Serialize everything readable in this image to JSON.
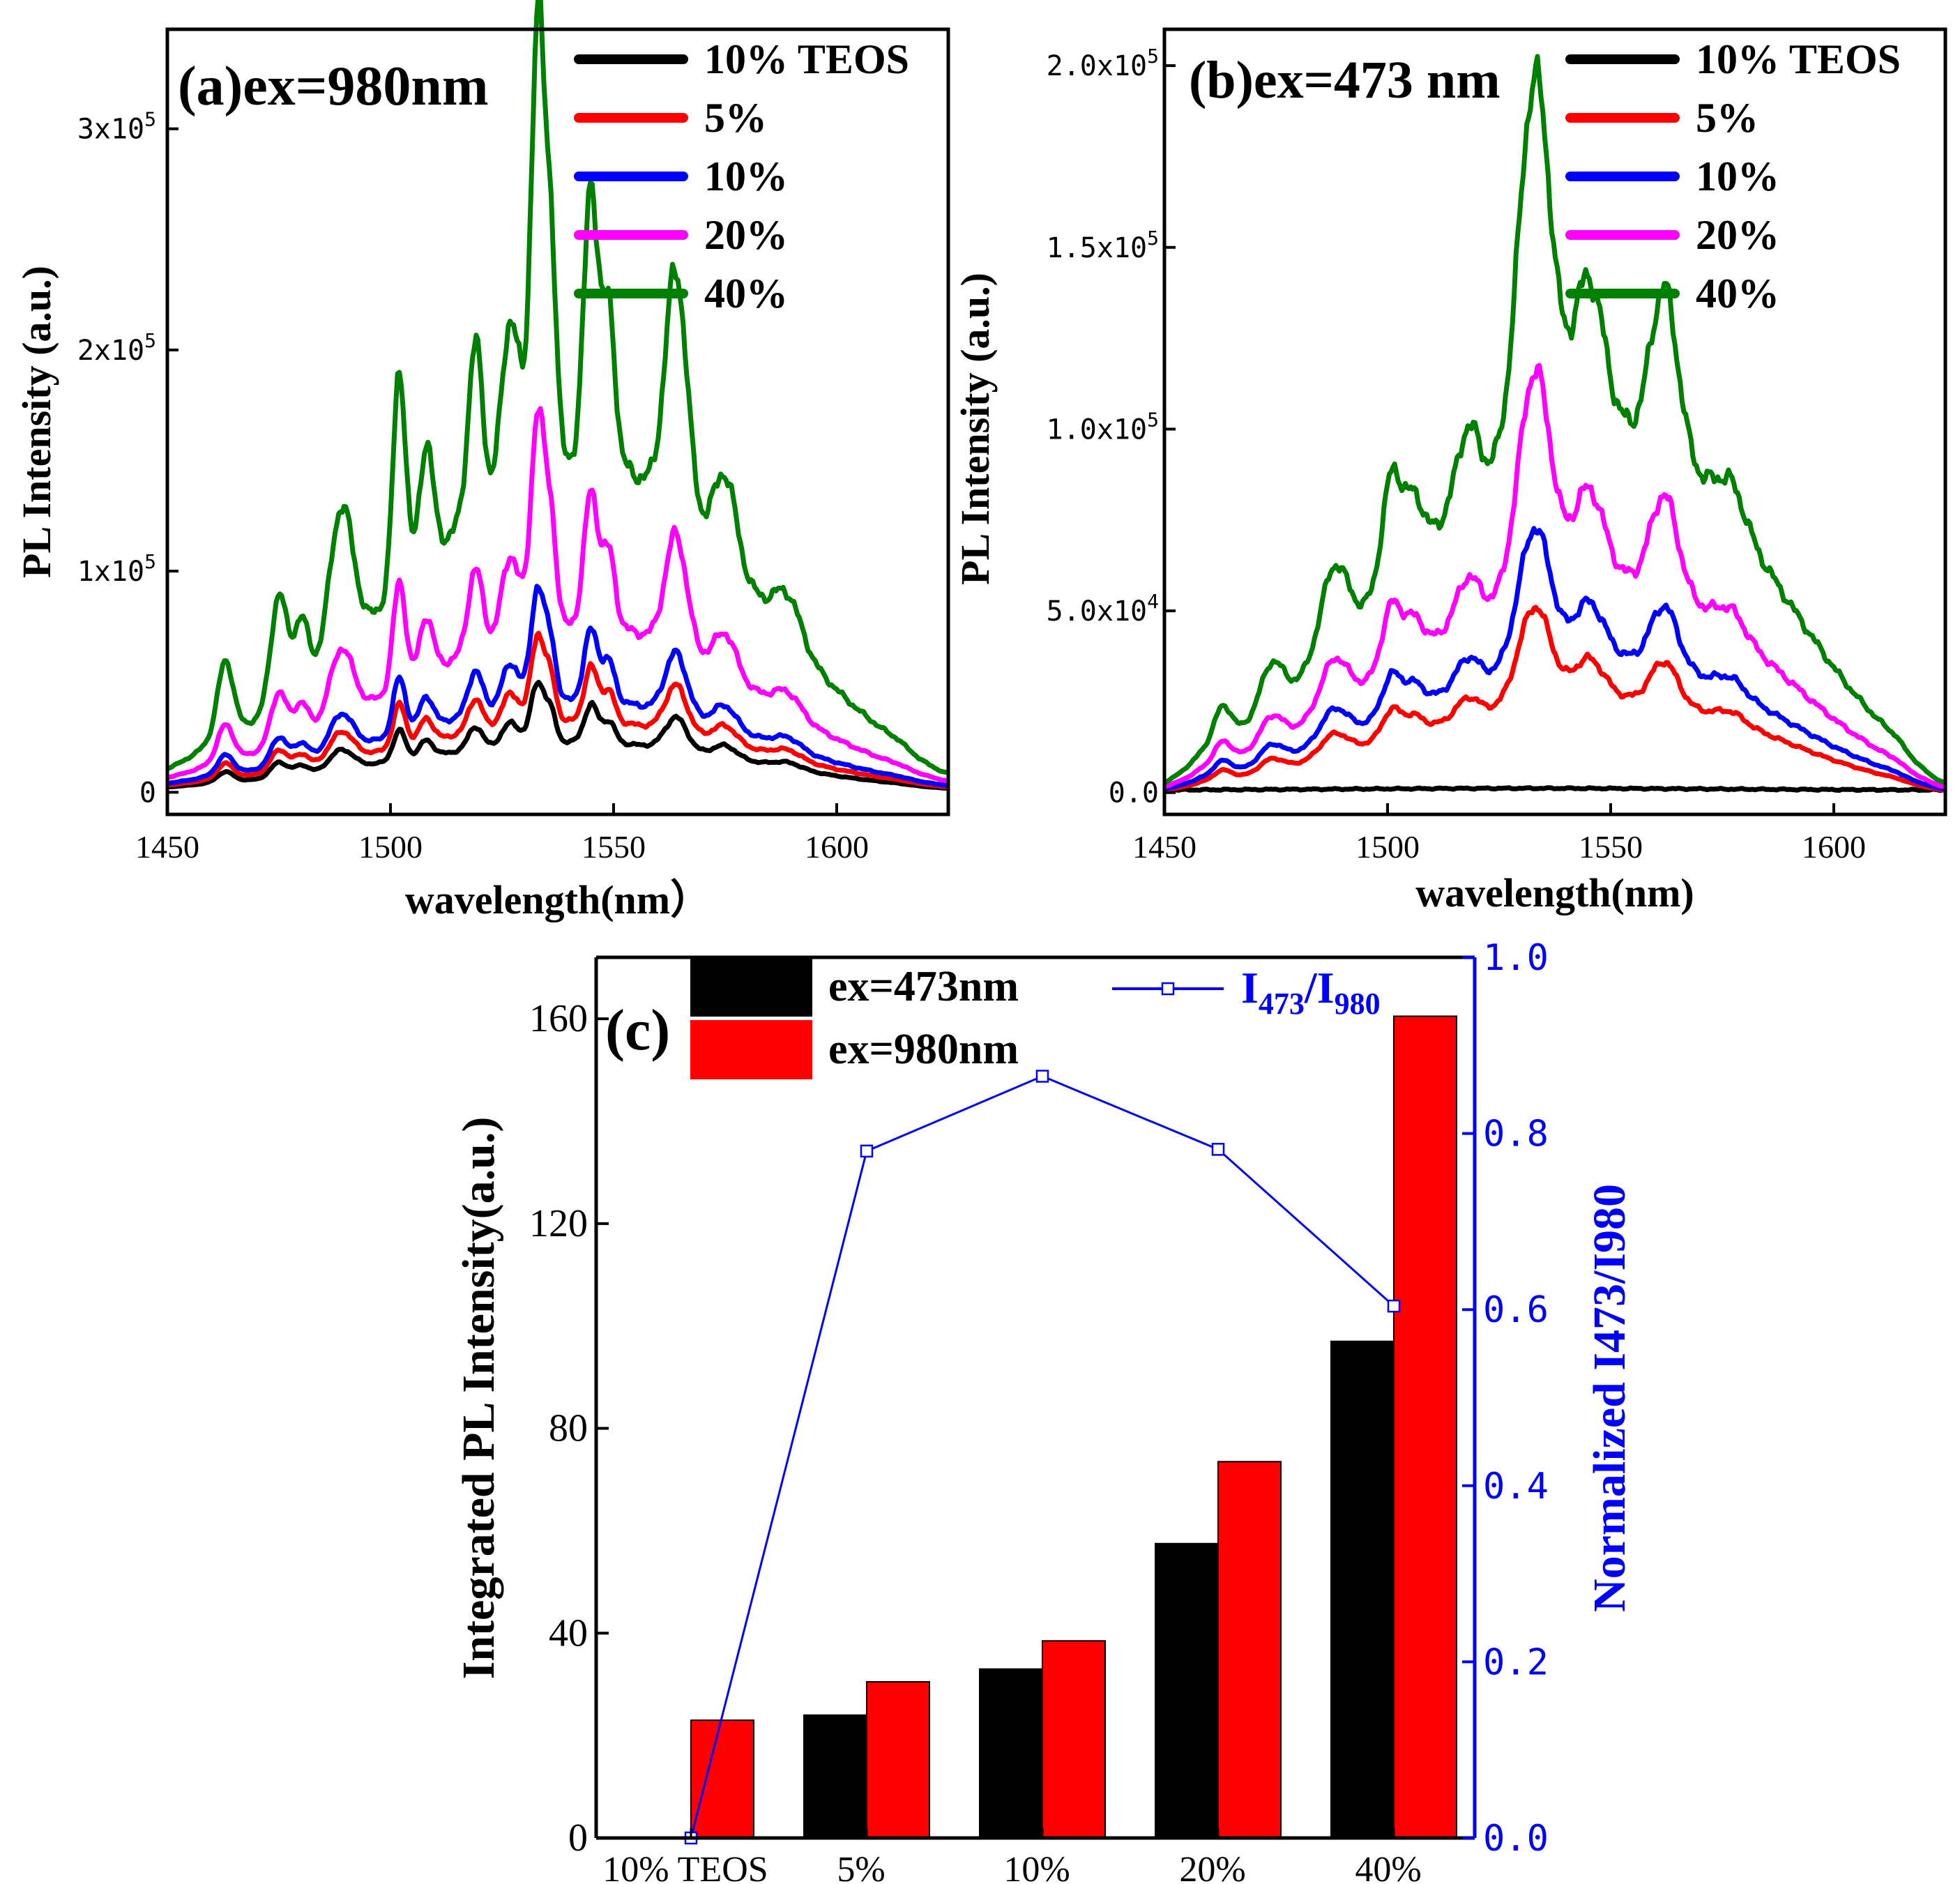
{
  "chart_data": [
    {
      "type": "line",
      "panel": "a",
      "title": "(a)ex=980nm",
      "xlabel": "wavelength(nm）",
      "ylabel": "PL Intensity (a.u.)",
      "xlim": [
        1450,
        1625
      ],
      "ylim": [
        -10000,
        345000
      ],
      "xticks": [
        1450,
        1500,
        1550,
        1600
      ],
      "xtick_labels": [
        "1450",
        "1500",
        "1550",
        "1600"
      ],
      "yticks": [
        0,
        100000,
        200000,
        300000
      ],
      "ytick_labels": [
        {
          "text": "0",
          "mantissa": "",
          "exp": ""
        },
        {
          "text": "1x10",
          "mantissa": "1x10",
          "exp": "5"
        },
        {
          "text": "2x10",
          "mantissa": "2x10",
          "exp": "5"
        },
        {
          "text": "3x10",
          "mantissa": "3x10",
          "exp": "5"
        }
      ],
      "legend": {
        "position": "top-right"
      },
      "series": [
        {
          "name": "10% TEOS",
          "color": "#000000",
          "scale": 0.135,
          "base": 0.015
        },
        {
          "name": "5%",
          "color": "#ff0000",
          "scale": 0.195,
          "base": 0.02
        },
        {
          "name": "10%",
          "color": "#0000ff",
          "scale": 0.255,
          "base": 0.025
        },
        {
          "name": "20%",
          "color": "#ff00ff",
          "scale": 0.48,
          "base": 0.04
        },
        {
          "name": "40%",
          "color": "#008000",
          "scale": 1.0,
          "base": 0.06
        }
      ],
      "profile": {
        "peak_value": 336000,
        "continuum": [
          {
            "c": 1530,
            "a": 0.26,
            "w": 34
          },
          {
            "c": 1565,
            "a": 0.14,
            "w": 28
          }
        ],
        "peaks": [
          {
            "c": 1463,
            "a": 0.09,
            "w": 1.8
          },
          {
            "c": 1475,
            "a": 0.13,
            "w": 1.8
          },
          {
            "c": 1480,
            "a": 0.08,
            "w": 1.6
          },
          {
            "c": 1489,
            "a": 0.17,
            "w": 2.6
          },
          {
            "c": 1502,
            "a": 0.26,
            "w": 1.4
          },
          {
            "c": 1508,
            "a": 0.14,
            "w": 1.5
          },
          {
            "c": 1519,
            "a": 0.2,
            "w": 1.6
          },
          {
            "c": 1527,
            "a": 0.2,
            "w": 2.0
          },
          {
            "c": 1533,
            "a": 0.54,
            "w": 1.5
          },
          {
            "c": 1536,
            "a": 0.25,
            "w": 1.2
          },
          {
            "c": 1545,
            "a": 0.33,
            "w": 1.6
          },
          {
            "c": 1549,
            "a": 0.18,
            "w": 1.4
          },
          {
            "c": 1564,
            "a": 0.28,
            "w": 2.4
          },
          {
            "c": 1575,
            "a": 0.1,
            "w": 2.5
          },
          {
            "c": 1589,
            "a": 0.05,
            "w": 3.0
          }
        ]
      }
    },
    {
      "type": "line",
      "panel": "b",
      "title": "(b)ex=473 nm",
      "xlabel": "wavelength(nm)",
      "ylabel": "PL Intensity (a.u.)",
      "xlim": [
        1450,
        1625
      ],
      "ylim": [
        -6000,
        210000
      ],
      "xticks": [
        1450,
        1500,
        1550,
        1600
      ],
      "xtick_labels": [
        "1450",
        "1500",
        "1550",
        "1600"
      ],
      "yticks": [
        0,
        50000,
        100000,
        150000,
        200000
      ],
      "ytick_labels": [
        {
          "text": "0.0",
          "mantissa": "",
          "exp": ""
        },
        {
          "text": "5.0x10",
          "mantissa": "5.0x10",
          "exp": "4"
        },
        {
          "text": "1.0x10",
          "mantissa": "1.0x10",
          "exp": "5"
        },
        {
          "text": "1.5x10",
          "mantissa": "1.5x10",
          "exp": "5"
        },
        {
          "text": "2.0x10",
          "mantissa": "2.0x10",
          "exp": "5"
        }
      ],
      "legend": {
        "position": "top-right"
      },
      "series": [
        {
          "name": "10% TEOS",
          "color": "#000000",
          "scale": 0.01,
          "base": 0.0
        },
        {
          "name": "5%",
          "color": "#ff0000",
          "scale": 0.26,
          "base": 0.0
        },
        {
          "name": "10%",
          "color": "#0000ff",
          "scale": 0.37,
          "base": 0.0
        },
        {
          "name": "20%",
          "color": "#ff00ff",
          "scale": 0.59,
          "base": 0.0
        },
        {
          "name": "40%",
          "color": "#008000",
          "scale": 1.0,
          "base": 0.0
        }
      ],
      "profile": {
        "peak_value": 197000,
        "continuum": [
          {
            "c": 1530,
            "a": 0.33,
            "w": 36
          },
          {
            "c": 1570,
            "a": 0.18,
            "w": 26
          }
        ],
        "peaks": [
          {
            "c": 1463,
            "a": 0.04,
            "w": 2.0
          },
          {
            "c": 1474,
            "a": 0.05,
            "w": 2.5
          },
          {
            "c": 1488,
            "a": 0.09,
            "w": 3.0
          },
          {
            "c": 1501,
            "a": 0.12,
            "w": 2.2
          },
          {
            "c": 1506,
            "a": 0.06,
            "w": 2.0
          },
          {
            "c": 1518,
            "a": 0.08,
            "w": 2.5
          },
          {
            "c": 1533,
            "a": 0.42,
            "w": 3.6
          },
          {
            "c": 1545,
            "a": 0.17,
            "w": 3.4
          },
          {
            "c": 1562,
            "a": 0.18,
            "w": 3.0
          },
          {
            "c": 1577,
            "a": 0.04,
            "w": 3.0
          }
        ]
      }
    },
    {
      "type": "bar",
      "panel": "c",
      "title": "(c)",
      "categories": [
        "10%  TEOS",
        "5%",
        "10%",
        "20%",
        "40%"
      ],
      "ylabel": "Integrated PL Intensity(a.u.)",
      "ylabel_right": "Normalized I473/I980",
      "ylim": [
        0,
        172
      ],
      "ylim_right": [
        0,
        1.0
      ],
      "yticks": [
        0,
        40,
        80,
        120,
        160
      ],
      "yticks_right": [
        "0.0",
        "0.2",
        "0.4",
        "0.6",
        "0.8",
        "1.0"
      ],
      "series": [
        {
          "name": "ex=473nm",
          "color": "#000000",
          "values": [
            0,
            24,
            33,
            57.5,
            97
          ]
        },
        {
          "name": "ex=980nm",
          "color": "#ff0000",
          "values": [
            23,
            30.5,
            38.5,
            73.5,
            160.5
          ]
        }
      ],
      "ratio_series": {
        "name": "I473/I980",
        "name_main": "I",
        "name_sub1": "473",
        "name_mid": "/I",
        "name_sub2": "980",
        "color": "#0000ff",
        "values": [
          0.0,
          0.78,
          0.865,
          0.782,
          0.604
        ]
      }
    }
  ]
}
